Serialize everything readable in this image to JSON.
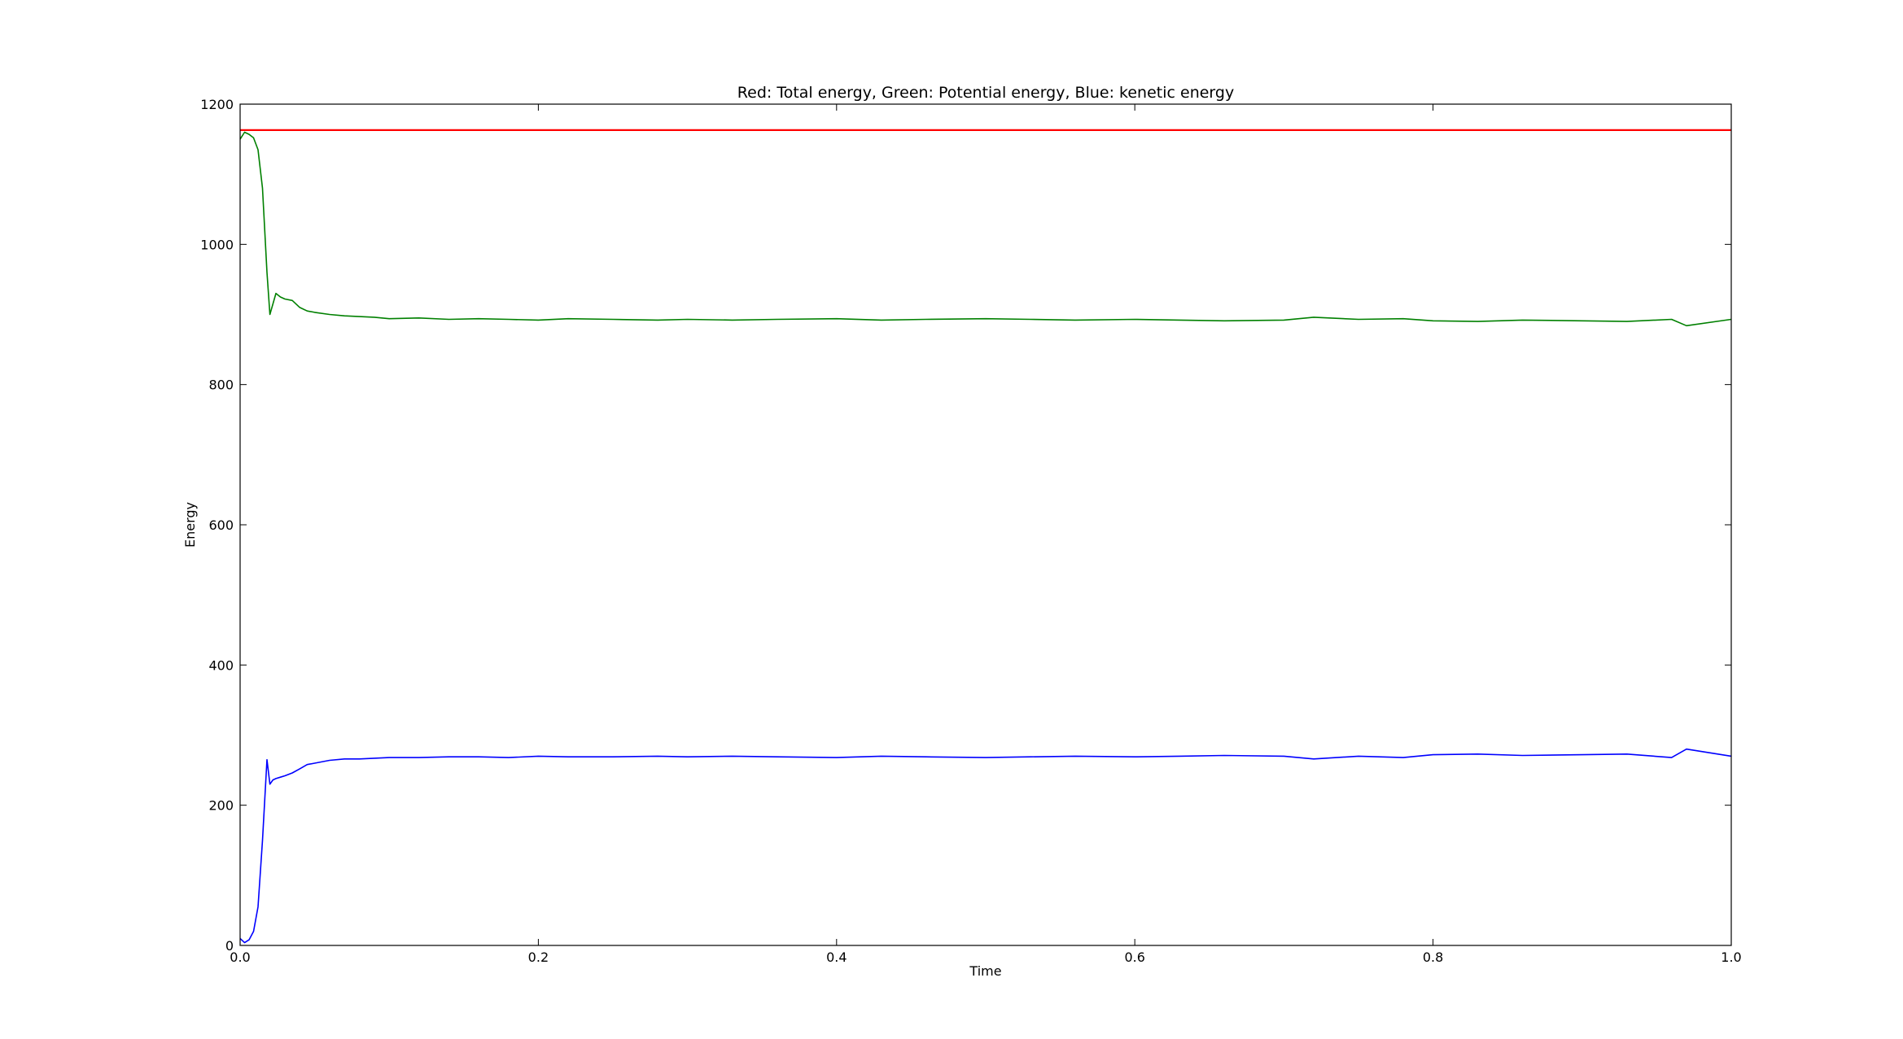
{
  "chart_data": {
    "type": "line",
    "title": "Red: Total energy, Green: Potential energy, Blue: kenetic energy",
    "xlabel": "Time",
    "ylabel": "Energy",
    "xlim": [
      0.0,
      1.0
    ],
    "ylim": [
      0,
      1200
    ],
    "xticks": [
      0.0,
      0.2,
      0.4,
      0.6,
      0.8,
      1.0
    ],
    "xtick_labels": [
      "0.0",
      "0.2",
      "0.4",
      "0.6",
      "0.8",
      "1.0"
    ],
    "yticks": [
      0,
      200,
      400,
      600,
      800,
      1000,
      1200
    ],
    "ytick_labels": [
      "0",
      "200",
      "400",
      "600",
      "800",
      "1000",
      "1200"
    ],
    "grid": false,
    "series": [
      {
        "color": "#ff0000",
        "x": [
          0.0,
          1.0
        ],
        "y": [
          1163,
          1163
        ]
      },
      {
        "color": "#008000",
        "x": [
          0.0,
          0.003,
          0.006,
          0.009,
          0.012,
          0.015,
          0.018,
          0.02,
          0.022,
          0.024,
          0.027,
          0.03,
          0.035,
          0.04,
          0.045,
          0.05,
          0.06,
          0.07,
          0.08,
          0.09,
          0.1,
          0.12,
          0.14,
          0.16,
          0.18,
          0.2,
          0.22,
          0.25,
          0.28,
          0.3,
          0.33,
          0.36,
          0.4,
          0.43,
          0.46,
          0.5,
          0.53,
          0.56,
          0.6,
          0.63,
          0.66,
          0.7,
          0.72,
          0.75,
          0.78,
          0.8,
          0.83,
          0.86,
          0.9,
          0.93,
          0.96,
          0.97,
          1.0
        ],
        "y": [
          1150,
          1160,
          1157,
          1152,
          1135,
          1080,
          960,
          900,
          915,
          930,
          925,
          922,
          920,
          910,
          905,
          903,
          900,
          898,
          897,
          896,
          894,
          895,
          893,
          894,
          893,
          892,
          894,
          893,
          892,
          893,
          892,
          893,
          894,
          892,
          893,
          894,
          893,
          892,
          893,
          892,
          891,
          892,
          896,
          893,
          894,
          891,
          890,
          892,
          891,
          890,
          893,
          884,
          893
        ]
      },
      {
        "color": "#0000ff",
        "x": [
          0.0,
          0.003,
          0.006,
          0.009,
          0.012,
          0.015,
          0.018,
          0.02,
          0.022,
          0.024,
          0.027,
          0.03,
          0.035,
          0.04,
          0.045,
          0.05,
          0.06,
          0.07,
          0.08,
          0.09,
          0.1,
          0.12,
          0.14,
          0.16,
          0.18,
          0.2,
          0.22,
          0.25,
          0.28,
          0.3,
          0.33,
          0.36,
          0.4,
          0.43,
          0.46,
          0.5,
          0.53,
          0.56,
          0.6,
          0.63,
          0.66,
          0.7,
          0.72,
          0.75,
          0.78,
          0.8,
          0.83,
          0.86,
          0.9,
          0.93,
          0.96,
          0.97,
          1.0
        ],
        "y": [
          10,
          4,
          8,
          20,
          55,
          150,
          265,
          230,
          236,
          238,
          240,
          242,
          246,
          252,
          258,
          260,
          264,
          266,
          266,
          267,
          268,
          268,
          269,
          269,
          268,
          270,
          269,
          269,
          270,
          269,
          270,
          269,
          268,
          270,
          269,
          268,
          269,
          270,
          269,
          270,
          271,
          270,
          266,
          270,
          268,
          272,
          273,
          271,
          272,
          273,
          268,
          280,
          270
        ]
      }
    ]
  }
}
